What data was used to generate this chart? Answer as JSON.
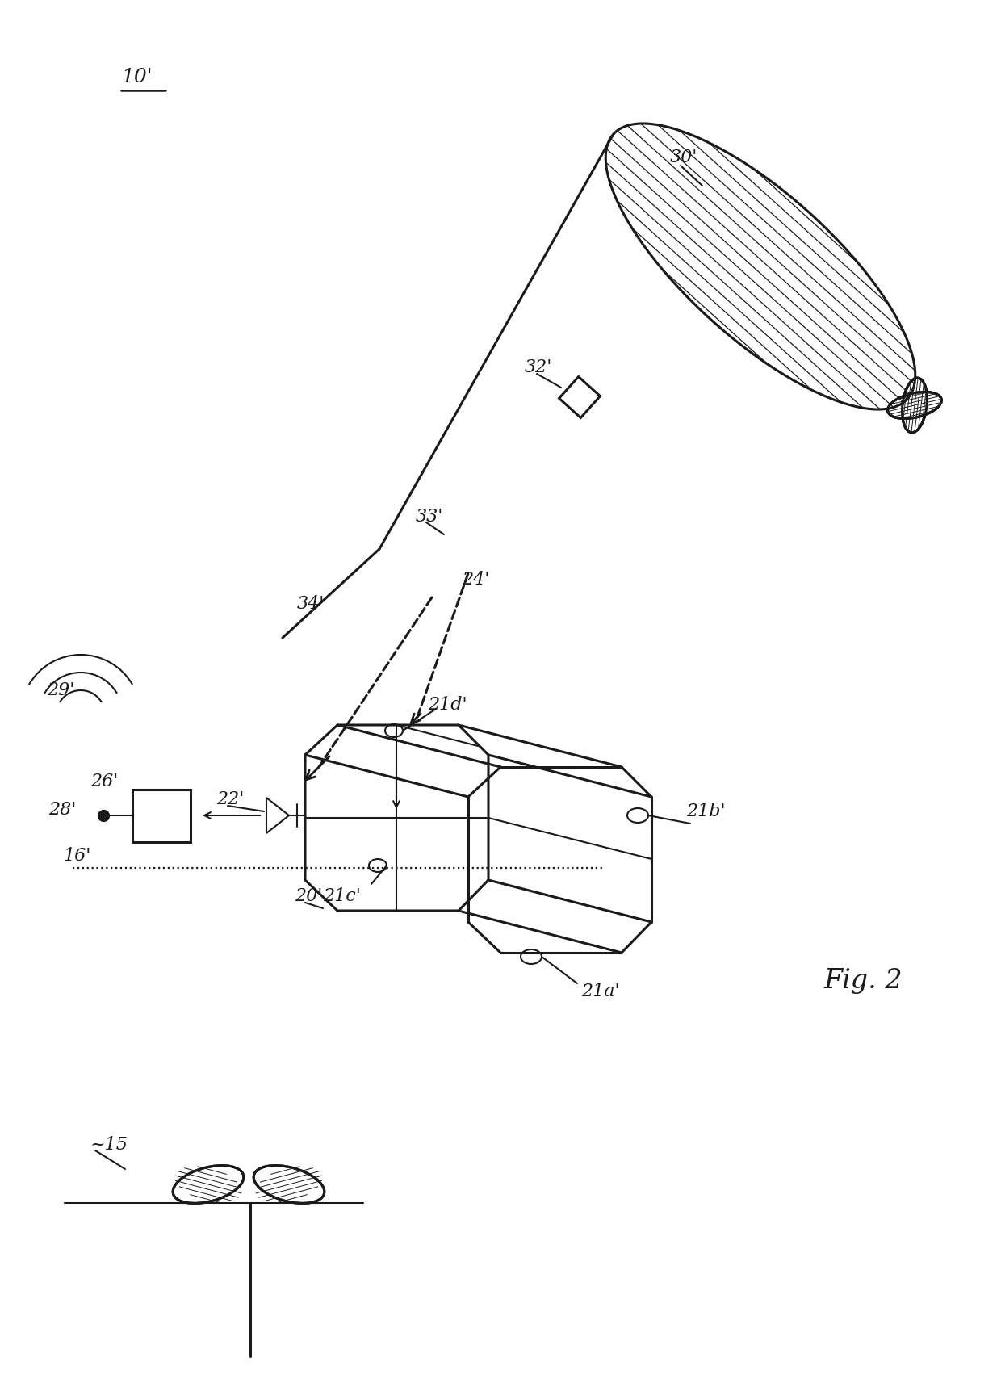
{
  "bg_color": "#ffffff",
  "line_color": "#1a1a1a",
  "lw_main": 2.2,
  "lw_thin": 1.5,
  "lw_hatch": 0.9,
  "labels": {
    "10p": "10'",
    "15": "~15",
    "16p": "16'",
    "20p": "20'",
    "21ap": "21a'",
    "21bp": "21b'",
    "21cp": "21c'",
    "21dp": "21d'",
    "22p": "22'",
    "24p": "24'",
    "26p": "26'",
    "28p": "28'",
    "29p": "29'",
    "30p": "30'",
    "32p": "32'",
    "33p": "33'",
    "34p": "34'",
    "fig": "Fig. 2"
  }
}
